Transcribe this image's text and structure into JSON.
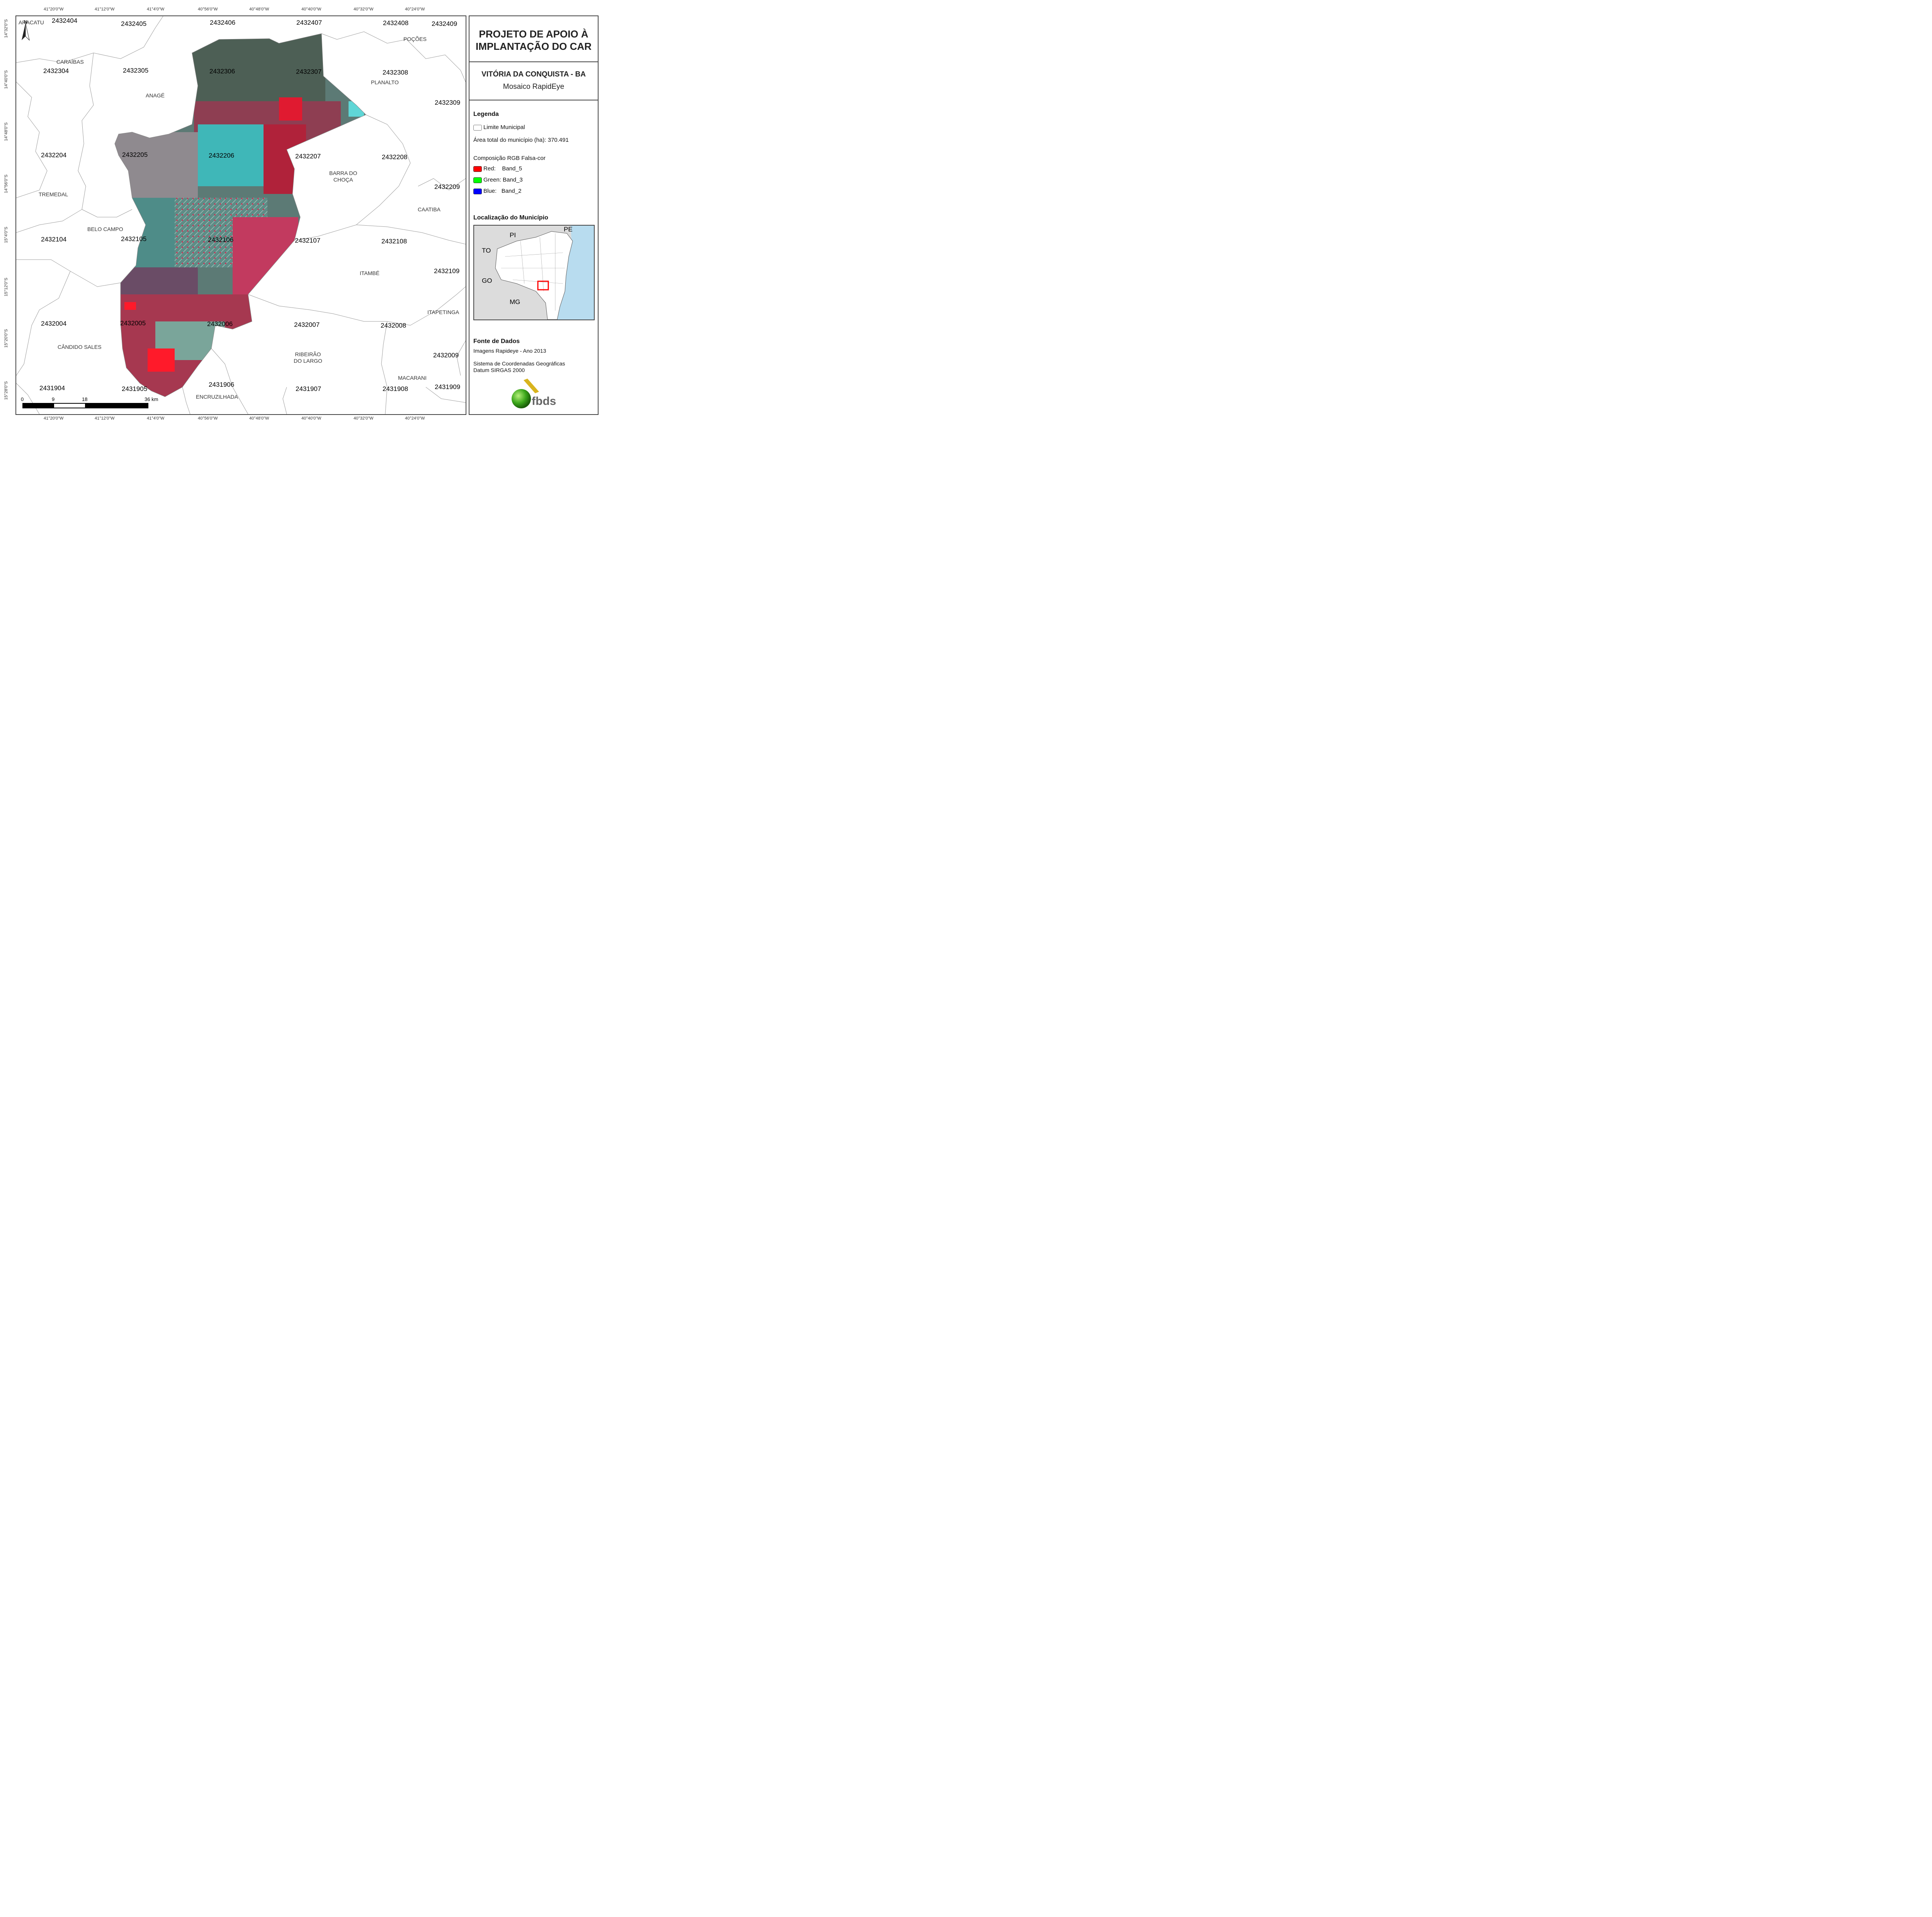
{
  "map": {
    "top_coords": [
      "41°20'0\"W",
      "41°12'0\"W",
      "41°4'0\"W",
      "40°56'0\"W",
      "40°48'0\"W",
      "40°40'0\"W",
      "40°32'0\"W",
      "40°24'0\"W"
    ],
    "bottom_coords": [
      "41°20'0\"W",
      "41°12'0\"W",
      "41°4'0\"W",
      "40°56'0\"W",
      "40°48'0\"W",
      "40°40'0\"W",
      "40°32'0\"W",
      "40°24'0\"W"
    ],
    "left_coords": [
      "14°32'0\"S",
      "14°40'0\"S",
      "14°48'0\"S",
      "14°56'0\"S",
      "15°4'0\"S",
      "15°12'0\"S",
      "15°20'0\"S",
      "15°28'0\"S"
    ],
    "grid_codes": [
      "2432404",
      "2432405",
      "2432406",
      "2432407",
      "2432408",
      "2432409",
      "2432304",
      "2432305",
      "2432306",
      "2432307",
      "2432308",
      "2432309",
      "2432204",
      "2432205",
      "2432206",
      "2432207",
      "2432208",
      "2432209",
      "2432104",
      "2432105",
      "2432106",
      "2432107",
      "2432108",
      "2432109",
      "2432004",
      "2432005",
      "2432006",
      "2432007",
      "2432008",
      "2432009",
      "2431904",
      "2431905",
      "2431906",
      "2431907",
      "2431908",
      "2431909"
    ],
    "places": [
      "ARACATU",
      "POÇÕES",
      "CARAÍBAS",
      "PLANALTO",
      "ANAGÉ",
      "BARRA DO\nCHOÇA",
      "TREMEDAL",
      "CAATIBA",
      "BELO CAMPO",
      "ITAMBÉ",
      "ITAPETINGA",
      "CÂNDIDO SALES",
      "RIBEIRÃO\nDO LARGO",
      "MACARANI",
      "ENCRUZILHADA"
    ],
    "north_label": "N",
    "scale_labels": [
      "0",
      "9",
      "18",
      "36 km"
    ]
  },
  "panel": {
    "title_line1": "PROJETO DE APOIO À",
    "title_line2": "IMPLANTAÇÃO DO CAR",
    "municipality": "VITÓRIA DA CONQUISTA - BA",
    "subtitle": "Mosaico RapidEye",
    "legend_title": "Legenda",
    "legend_limit": "Limite Municipal",
    "legend_area": "Área total do município (ha): 370.491",
    "legend_rgb_title": "Composição RGB Falsa-cor",
    "legend_red": "Red:    Band_5",
    "legend_green": "Green: Band_3",
    "legend_blue": "Blue:   Band_2",
    "location_title": "Localização do Município",
    "inset_labels": [
      "PI",
      "PE",
      "TO",
      "GO",
      "MG"
    ],
    "source_title": "Fonte de Dados",
    "source_line1": "Imagens Rapideye - Ano 2013",
    "source_line2": "Sistema de Coordenadas Geográficas",
    "source_line3": "Datum SIRGAS 2000",
    "logo_text": "fbds"
  },
  "colors": {
    "red": "#ff0000",
    "green": "#00ff00",
    "blue": "#0000ff",
    "sea": "#b8dcef"
  }
}
